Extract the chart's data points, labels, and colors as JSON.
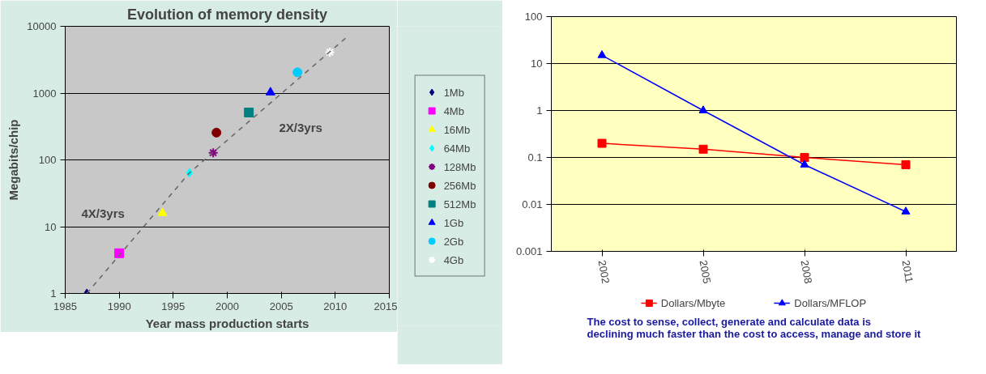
{
  "chart_data": [
    {
      "type": "scatter",
      "title": "Evolution of memory density",
      "xlabel": "Year mass production starts",
      "ylabel": "Megabits/chip",
      "xlim": [
        1985,
        2015
      ],
      "xticks": [
        1985,
        1990,
        1995,
        2000,
        2005,
        2010,
        2015
      ],
      "ylim": [
        1,
        10000
      ],
      "yticks": [
        1,
        10,
        100,
        1000,
        10000
      ],
      "log": true,
      "grid": "y",
      "legend": "right",
      "annotations": [
        "4X/3yrs",
        "2X/3yrs"
      ],
      "series": [
        {
          "name": "1Mb",
          "color": "#000080",
          "marker": "diamond",
          "x": [
            1987
          ],
          "values": [
            1
          ]
        },
        {
          "name": "4Mb",
          "color": "#ff00ff",
          "marker": "square",
          "x": [
            1990
          ],
          "values": [
            4
          ]
        },
        {
          "name": "16Mb",
          "color": "#ffff00",
          "marker": "triangle",
          "x": [
            1994
          ],
          "values": [
            16
          ]
        },
        {
          "name": "64Mb",
          "color": "#00ffff",
          "marker": "diamond",
          "x": [
            1996.5
          ],
          "values": [
            64
          ]
        },
        {
          "name": "128Mb",
          "color": "#800080",
          "marker": "cross",
          "x": [
            1998.7
          ],
          "values": [
            128
          ]
        },
        {
          "name": "256Mb",
          "color": "#800000",
          "marker": "circle",
          "x": [
            1999
          ],
          "values": [
            256
          ]
        },
        {
          "name": "512Mb",
          "color": "#008080",
          "marker": "square",
          "x": [
            2002
          ],
          "values": [
            512
          ]
        },
        {
          "name": "1Gb",
          "color": "#0000ff",
          "marker": "triangle",
          "x": [
            2004
          ],
          "values": [
            1024
          ]
        },
        {
          "name": "2Gb",
          "color": "#00ccff",
          "marker": "circle",
          "x": [
            2006.5
          ],
          "values": [
            2048
          ]
        },
        {
          "name": "4Gb",
          "color": "#ffffff",
          "marker": "cross",
          "x": [
            2009.5
          ],
          "values": [
            4096
          ]
        },
        {
          "type": "line",
          "color": "#666666",
          "line_style": "dashed",
          "marker": "none",
          "x": [
            1987,
            1996.5,
            2011.2
          ],
          "values": [
            1,
            64,
            7200
          ]
        }
      ]
    },
    {
      "type": "line",
      "categories": [
        "2002",
        "2005",
        "2008",
        "2011"
      ],
      "ylim": [
        0.001,
        100
      ],
      "yticks": [
        0.001,
        0.01,
        0.1,
        1,
        10,
        100
      ],
      "log": true,
      "grid": "y",
      "legend": "bottom",
      "annotations": [
        "The cost to sense, collect, generate and calculate data is declining much faster than the cost to access, manage and store it"
      ],
      "series": [
        {
          "name": "Dollars/Mbyte",
          "color": "#ff0000",
          "marker": "square",
          "values": [
            0.2,
            0.15,
            0.1,
            0.07
          ]
        },
        {
          "name": "Dollars/MFLOP",
          "color": "#0000ff",
          "marker": "triangle",
          "values": [
            15,
            1,
            0.07,
            0.007
          ]
        }
      ]
    }
  ]
}
